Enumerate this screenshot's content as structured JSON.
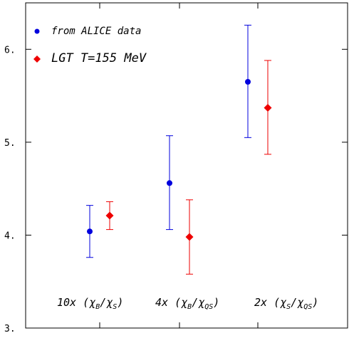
{
  "chart_data": {
    "type": "scatter",
    "title": "",
    "xlabel": "",
    "ylabel": "",
    "ylim": [
      3.0,
      6.5
    ],
    "yticks": [
      3,
      4,
      5,
      6
    ],
    "ytick_labels": [
      "3.",
      "4.",
      "5.",
      "6."
    ],
    "grid": false,
    "legend_position": "top-left",
    "categories": [
      {
        "prefix": "10x (",
        "num": "χ",
        "num_sub": "B",
        "den": "χ",
        "den_sub": "S"
      },
      {
        "prefix": "4x (",
        "num": "χ",
        "num_sub": "B",
        "den": "χ",
        "den_sub": "QS"
      },
      {
        "prefix": "2x (",
        "num": "χ",
        "num_sub": "S",
        "den": "χ",
        "den_sub": "QS"
      }
    ],
    "series": [
      {
        "name": "from ALICE data",
        "marker": "circle",
        "color": "#0000dd",
        "values": [
          4.04,
          4.56,
          5.65
        ],
        "err_low": [
          3.76,
          4.06,
          5.05
        ],
        "err_high": [
          4.32,
          5.07,
          6.26
        ]
      },
      {
        "name": "LGT T=155 MeV",
        "marker": "diamond",
        "color": "#ee0000",
        "values": [
          4.21,
          3.98,
          5.37
        ],
        "err_low": [
          4.06,
          3.58,
          4.87
        ],
        "err_high": [
          4.36,
          4.38,
          5.88
        ]
      }
    ]
  }
}
